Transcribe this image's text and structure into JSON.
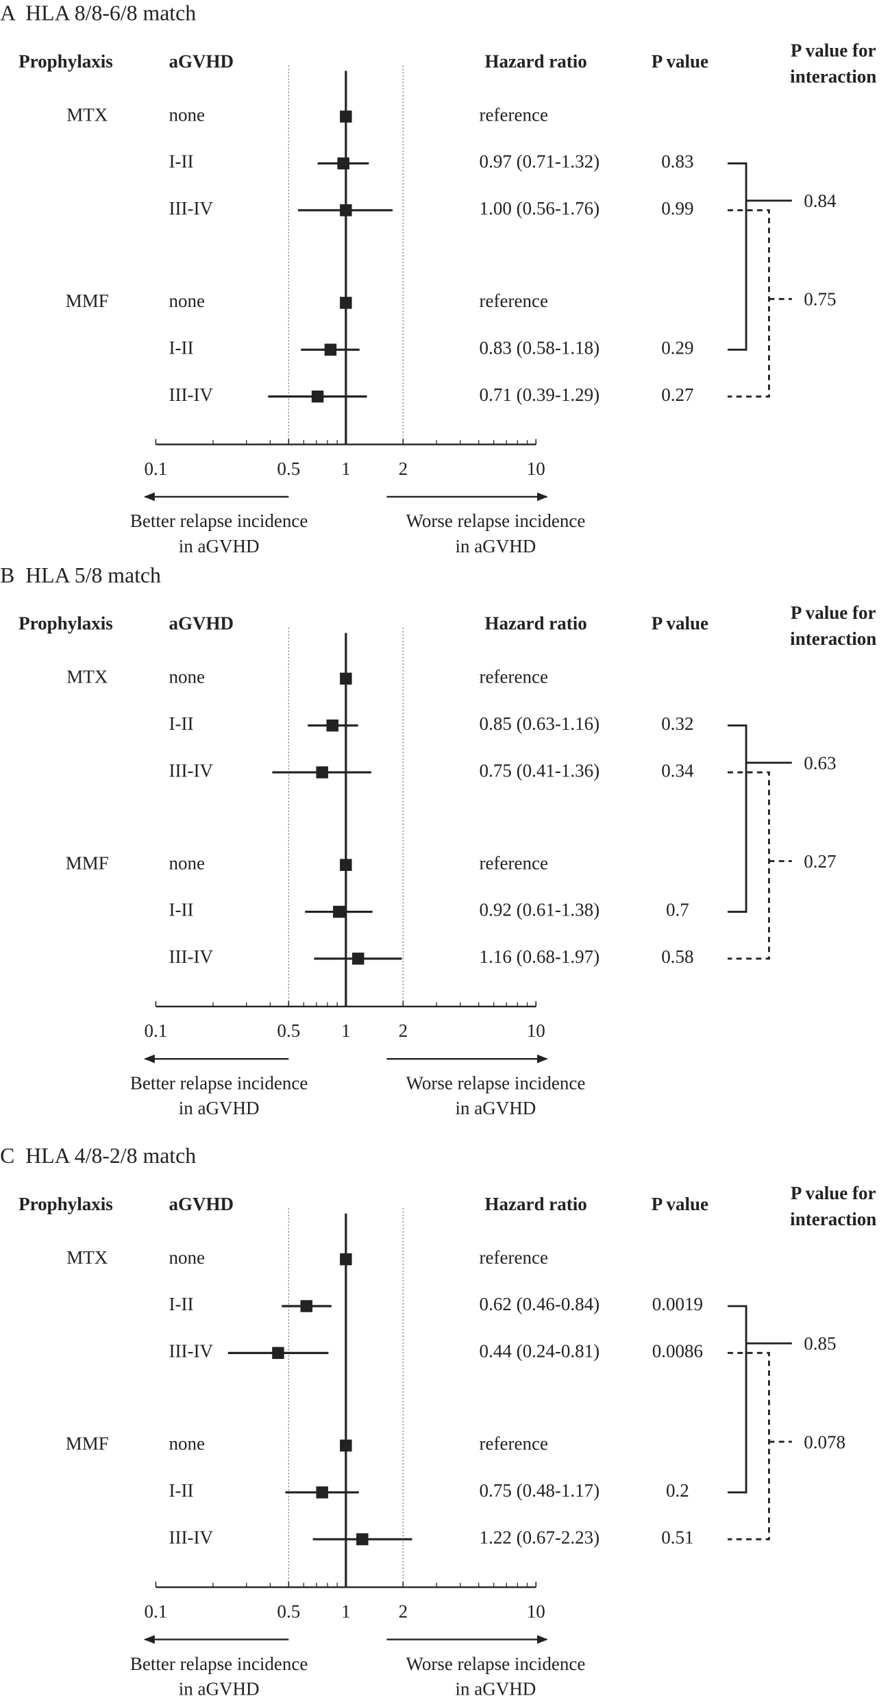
{
  "chart_data": [
    {
      "type": "forest",
      "title": "A  HLA 8/8-6/8 match",
      "headers": {
        "prophylaxis": "Prophylaxis",
        "agvhd": "aGVHD",
        "hr": "Hazard ratio",
        "p": "P value",
        "interaction": [
          "P value for",
          "interaction"
        ]
      },
      "rows": [
        {
          "prophylaxis": "MTX",
          "agvhd": "none",
          "hr": 1,
          "lo": null,
          "hi": null,
          "hr_label": "reference",
          "p": null
        },
        {
          "prophylaxis": null,
          "agvhd": "I-II",
          "hr": 0.97,
          "lo": 0.71,
          "hi": 1.32,
          "hr_label": "0.97 (0.71-1.32)",
          "p": 0.83
        },
        {
          "prophylaxis": null,
          "agvhd": "III-IV",
          "hr": 1,
          "lo": 0.56,
          "hi": 1.76,
          "hr_label": "1.00 (0.56-1.76)",
          "p": 0.99
        },
        {
          "prophylaxis": "MMF",
          "agvhd": "none",
          "hr": 1,
          "lo": null,
          "hi": null,
          "hr_label": "reference",
          "p": null
        },
        {
          "prophylaxis": null,
          "agvhd": "I-II",
          "hr": 0.83,
          "lo": 0.58,
          "hi": 1.18,
          "hr_label": "0.83 (0.58-1.18)",
          "p": 0.29
        },
        {
          "prophylaxis": null,
          "agvhd": "III-IV",
          "hr": 0.71,
          "lo": 0.39,
          "hi": 1.29,
          "hr_label": "0.71 (0.39-1.29)",
          "p": 0.27
        }
      ],
      "interaction_p": [
        0.84,
        0.75
      ],
      "xscale": "log",
      "xlim": [
        0.1,
        10
      ],
      "xticks": [
        0.1,
        0.5,
        1,
        2,
        10
      ],
      "dotted_lines": [
        0.5,
        2
      ],
      "null_line": 1,
      "better_label": [
        "Better relapse incidence",
        "in aGVHD"
      ],
      "worse_label": [
        "Worse relapse incidence",
        "in aGVHD"
      ]
    },
    {
      "type": "forest",
      "title": "B  HLA 5/8 match",
      "headers": {
        "prophylaxis": "Prophylaxis",
        "agvhd": "aGVHD",
        "hr": "Hazard ratio",
        "p": "P value",
        "interaction": [
          "P value for",
          "interaction"
        ]
      },
      "rows": [
        {
          "prophylaxis": "MTX",
          "agvhd": "none",
          "hr": 1,
          "lo": null,
          "hi": null,
          "hr_label": "reference",
          "p": null
        },
        {
          "prophylaxis": null,
          "agvhd": "I-II",
          "hr": 0.85,
          "lo": 0.63,
          "hi": 1.16,
          "hr_label": "0.85 (0.63-1.16)",
          "p": 0.32
        },
        {
          "prophylaxis": null,
          "agvhd": "III-IV",
          "hr": 0.75,
          "lo": 0.41,
          "hi": 1.36,
          "hr_label": "0.75 (0.41-1.36)",
          "p": 0.34
        },
        {
          "prophylaxis": "MMF",
          "agvhd": "none",
          "hr": 1,
          "lo": null,
          "hi": null,
          "hr_label": "reference",
          "p": null
        },
        {
          "prophylaxis": null,
          "agvhd": "I-II",
          "hr": 0.92,
          "lo": 0.61,
          "hi": 1.38,
          "hr_label": "0.92 (0.61-1.38)",
          "p": 0.7
        },
        {
          "prophylaxis": null,
          "agvhd": "III-IV",
          "hr": 1.16,
          "lo": 0.68,
          "hi": 1.97,
          "hr_label": "1.16 (0.68-1.97)",
          "p": 0.58
        }
      ],
      "interaction_p": [
        0.63,
        0.27
      ],
      "xscale": "log",
      "xlim": [
        0.1,
        10
      ],
      "xticks": [
        0.1,
        0.5,
        1,
        2,
        10
      ],
      "dotted_lines": [
        0.5,
        2
      ],
      "null_line": 1,
      "better_label": [
        "Better relapse incidence",
        "in aGVHD"
      ],
      "worse_label": [
        "Worse relapse incidence",
        "in aGVHD"
      ]
    },
    {
      "type": "forest",
      "title": "C  HLA 4/8-2/8 match",
      "headers": {
        "prophylaxis": "Prophylaxis",
        "agvhd": "aGVHD",
        "hr": "Hazard ratio",
        "p": "P value",
        "interaction": [
          "P value for",
          "interaction"
        ]
      },
      "rows": [
        {
          "prophylaxis": "MTX",
          "agvhd": "none",
          "hr": 1,
          "lo": null,
          "hi": null,
          "hr_label": "reference",
          "p": null
        },
        {
          "prophylaxis": null,
          "agvhd": "I-II",
          "hr": 0.62,
          "lo": 0.46,
          "hi": 0.84,
          "hr_label": "0.62 (0.46-0.84)",
          "p": 0.0019
        },
        {
          "prophylaxis": null,
          "agvhd": "III-IV",
          "hr": 0.44,
          "lo": 0.24,
          "hi": 0.81,
          "hr_label": "0.44 (0.24-0.81)",
          "p": 0.0086
        },
        {
          "prophylaxis": "MMF",
          "agvhd": "none",
          "hr": 1,
          "lo": null,
          "hi": null,
          "hr_label": "reference",
          "p": null
        },
        {
          "prophylaxis": null,
          "agvhd": "I-II",
          "hr": 0.75,
          "lo": 0.48,
          "hi": 1.17,
          "hr_label": "0.75 (0.48-1.17)",
          "p": 0.2
        },
        {
          "prophylaxis": null,
          "agvhd": "III-IV",
          "hr": 1.22,
          "lo": 0.67,
          "hi": 2.23,
          "hr_label": "1.22 (0.67-2.23)",
          "p": 0.51
        }
      ],
      "interaction_p": [
        0.85,
        0.078
      ],
      "xscale": "log",
      "xlim": [
        0.1,
        10
      ],
      "xticks": [
        0.1,
        0.5,
        1,
        2,
        10
      ],
      "dotted_lines": [
        0.5,
        2
      ],
      "null_line": 1,
      "better_label": [
        "Better relapse incidence",
        "in aGVHD"
      ],
      "worse_label": [
        "Worse relapse incidence",
        "in aGVHD"
      ]
    }
  ]
}
